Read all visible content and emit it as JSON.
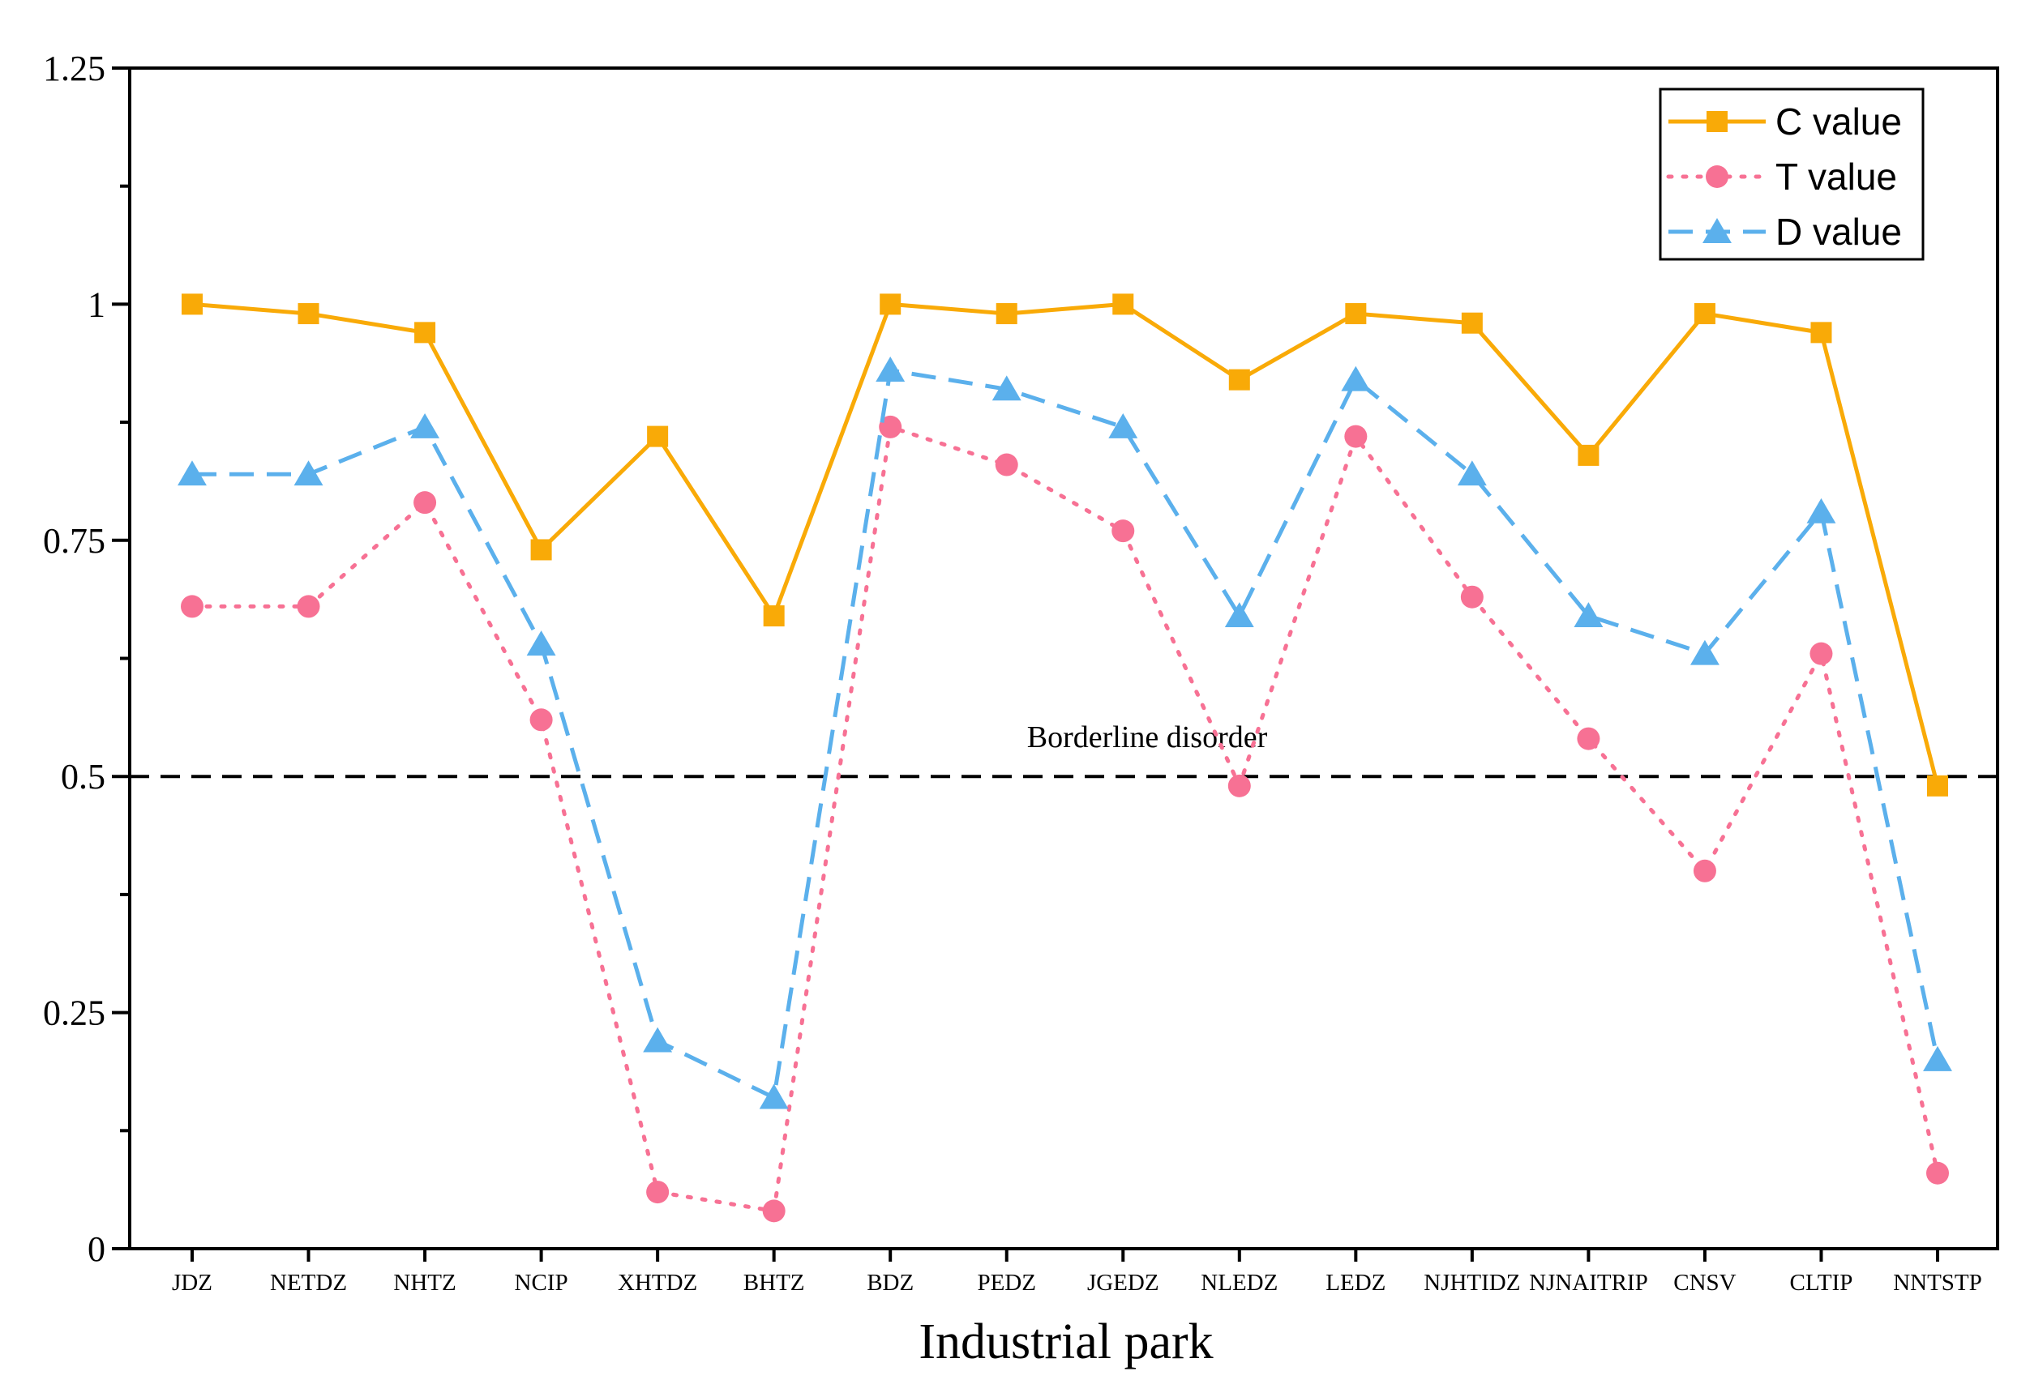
{
  "chart_data": {
    "type": "line",
    "title": "",
    "xlabel": "Industrial park",
    "ylabel": "",
    "ylim": [
      0,
      1.25
    ],
    "yticks": [
      {
        "value": 0,
        "label": "0"
      },
      {
        "value": 0.25,
        "label": "0.25"
      },
      {
        "value": 0.5,
        "label": "0.5"
      },
      {
        "value": 0.75,
        "label": "0.75"
      },
      {
        "value": 1,
        "label": "1"
      },
      {
        "value": 1.25,
        "label": "1.25"
      }
    ],
    "categories": [
      "JDZ",
      "NETDZ",
      "NHTZ",
      "NCIP",
      "XHTDZ",
      "BHTZ",
      "BDZ",
      "PEDZ",
      "JGEDZ",
      "NLEDZ",
      "LEDZ",
      "NJHTIDZ",
      "NJNAITRIP",
      "CNSV",
      "CLTIP",
      "NNTSTP"
    ],
    "series": [
      {
        "name": "C value",
        "color": "#F9AA07",
        "marker": "square",
        "dash": "solid",
        "values": [
          1.0,
          0.99,
          0.97,
          0.74,
          0.86,
          0.67,
          1.0,
          0.99,
          1.0,
          0.92,
          0.99,
          0.98,
          0.84,
          0.99,
          0.97,
          0.49
        ]
      },
      {
        "name": "T value",
        "color": "#F77194",
        "marker": "circle",
        "dash": "dot",
        "values": [
          0.68,
          0.68,
          0.79,
          0.56,
          0.06,
          0.04,
          0.87,
          0.83,
          0.76,
          0.49,
          0.86,
          0.69,
          0.54,
          0.4,
          0.63,
          0.08
        ]
      },
      {
        "name": "D value",
        "color": "#5BB0EC",
        "marker": "triangle",
        "dash": "dash",
        "values": [
          0.82,
          0.82,
          0.87,
          0.64,
          0.22,
          0.16,
          0.93,
          0.91,
          0.87,
          0.67,
          0.92,
          0.82,
          0.67,
          0.63,
          0.78,
          0.2
        ]
      }
    ],
    "reference_line": {
      "value": 0.5,
      "label": "Borderline disorder",
      "color": "#000000"
    },
    "legend_position": "top-right",
    "grid": false
  }
}
